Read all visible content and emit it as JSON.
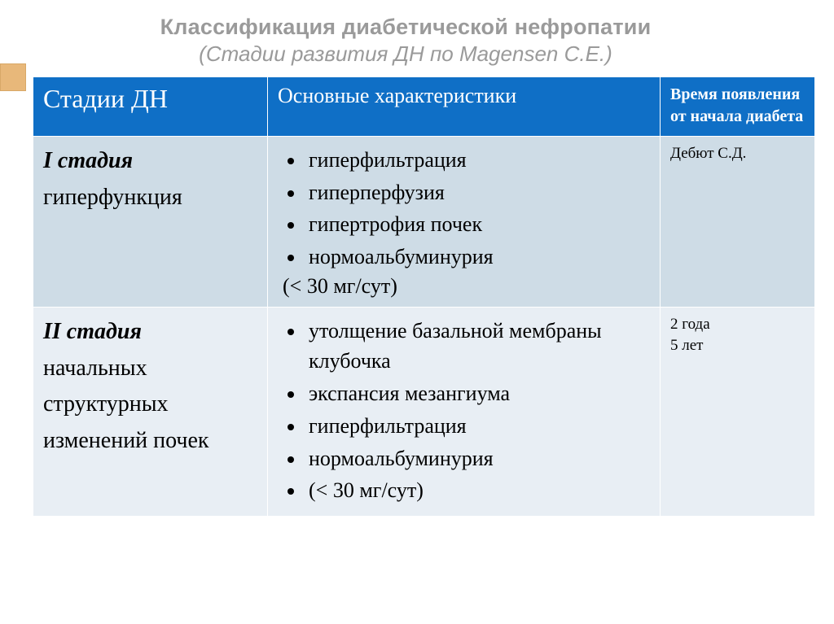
{
  "title": {
    "line1": "Классификация диабетической нефропатии",
    "line2": "(Стадии развития ДН по Magensen C.E.)"
  },
  "header": {
    "col1": "Стадии ДН",
    "col2": "Основные характеристики",
    "col3": "Время появления от начала диабета"
  },
  "rows": [
    {
      "stage_name": "I стадия",
      "stage_sub": "гиперфункция",
      "chars": [
        "гиперфильтрация",
        "гиперперфузия",
        "гипертрофия почек",
        "нормоальбуминурия"
      ],
      "char_tail": "(< 30 мг/сут)",
      "tail_as_bullet": false,
      "time": [
        "Дебют С.Д."
      ]
    },
    {
      "stage_name": "II стадия",
      "stage_sub": "начальных структурных изменений почек",
      "chars": [
        "утолщение базальной мембраны клубочка",
        "экспансия мезангиума",
        "гиперфильтрация",
        "нормоальбуминурия",
        "(< 30 мг/сут)"
      ],
      "char_tail": "",
      "tail_as_bullet": true,
      "time": [
        "2 года",
        "5 лет"
      ]
    }
  ],
  "colors": {
    "header_bg": "#0f6fc6",
    "row_a_bg": "#cedce6",
    "row_b_bg": "#e8eef4",
    "accent": "#e8b87a",
    "title_text": "#9a9a9a"
  }
}
